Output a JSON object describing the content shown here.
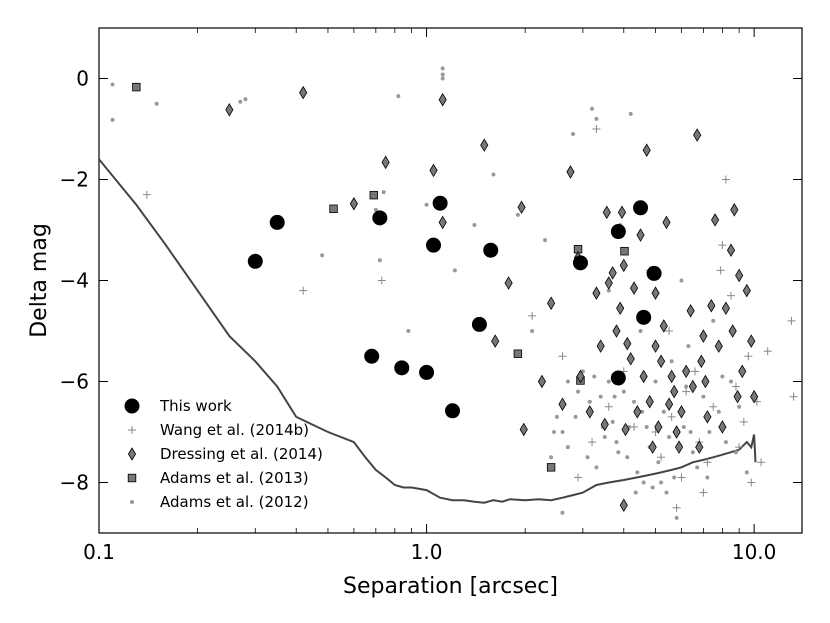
{
  "chart_data": {
    "type": "scatter",
    "title": "",
    "xlabel": "Separation [arcsec]",
    "ylabel": "Delta mag",
    "xscale": "log",
    "xlim": [
      0.1,
      14
    ],
    "ylim": [
      -9,
      1
    ],
    "xticks": [
      {
        "value": 0.1,
        "label": "0.1"
      },
      {
        "value": 1.0,
        "label": "1.0"
      },
      {
        "value": 10.0,
        "label": "10.0"
      }
    ],
    "yticks": [
      {
        "value": 0,
        "label": "0"
      },
      {
        "value": -2,
        "label": "−2"
      },
      {
        "value": -4,
        "label": "−4"
      },
      {
        "value": -6,
        "label": "−6"
      },
      {
        "value": -8,
        "label": "−8"
      }
    ],
    "grid": false,
    "legend_position": "bottom-left",
    "colors": {
      "black": "#000000",
      "gray_fill": "#777777",
      "light_gray": "#999999",
      "curve": "#444444"
    },
    "sensitivity_curve": {
      "x": [
        0.1,
        0.13,
        0.16,
        0.2,
        0.25,
        0.3,
        0.35,
        0.4,
        0.5,
        0.6,
        0.65,
        0.7,
        0.75,
        0.8,
        0.85,
        0.9,
        1.0,
        1.1,
        1.2,
        1.3,
        1.4,
        1.5,
        1.6,
        1.7,
        1.8,
        2.0,
        2.2,
        2.4,
        2.6,
        2.8,
        3.0,
        3.3,
        3.6,
        4.0,
        4.4,
        4.8,
        5.2,
        5.6,
        6.0,
        6.5,
        7.0,
        7.5,
        8.0,
        8.5,
        9.0,
        9.5,
        9.8,
        10.0,
        10.1
      ],
      "y": [
        -1.6,
        -2.5,
        -3.3,
        -4.2,
        -5.1,
        -5.6,
        -6.1,
        -6.7,
        -7.0,
        -7.2,
        -7.5,
        -7.75,
        -7.9,
        -8.05,
        -8.1,
        -8.1,
        -8.15,
        -8.3,
        -8.35,
        -8.35,
        -8.38,
        -8.4,
        -8.35,
        -8.38,
        -8.33,
        -8.35,
        -8.33,
        -8.35,
        -8.3,
        -8.25,
        -8.2,
        -8.05,
        -8.0,
        -7.95,
        -7.9,
        -7.85,
        -7.8,
        -7.75,
        -7.7,
        -7.6,
        -7.55,
        -7.5,
        -7.45,
        -7.4,
        -7.35,
        -7.2,
        -7.3,
        -7.05,
        -7.6
      ]
    },
    "series": [
      {
        "name": "This work",
        "marker": "circle-large",
        "points": [
          [
            0.3,
            -3.62
          ],
          [
            0.35,
            -2.85
          ],
          [
            0.68,
            -5.5
          ],
          [
            0.72,
            -2.76
          ],
          [
            0.84,
            -5.73
          ],
          [
            1.0,
            -5.82
          ],
          [
            1.05,
            -3.3
          ],
          [
            1.1,
            -2.47
          ],
          [
            1.2,
            -6.58
          ],
          [
            1.45,
            -4.87
          ],
          [
            1.57,
            -3.4
          ],
          [
            2.95,
            -3.65
          ],
          [
            3.85,
            -3.03
          ],
          [
            3.85,
            -5.93
          ],
          [
            4.5,
            -2.56
          ],
          [
            4.6,
            -4.73
          ],
          [
            4.95,
            -3.86
          ]
        ]
      },
      {
        "name": "Wang et al. (2014b)",
        "marker": "plus",
        "points": [
          [
            0.14,
            -2.3
          ],
          [
            0.42,
            -4.2
          ],
          [
            0.73,
            -4.0
          ],
          [
            2.1,
            -4.7
          ],
          [
            2.6,
            -5.5
          ],
          [
            3.3,
            -1.0
          ],
          [
            3.6,
            -6.5
          ],
          [
            4.0,
            -5.8
          ],
          [
            4.8,
            -3.8
          ],
          [
            5.0,
            -7.0
          ],
          [
            5.5,
            -5.0
          ],
          [
            5.8,
            -8.5
          ],
          [
            6.2,
            -6.2
          ],
          [
            6.8,
            -7.2
          ],
          [
            7.0,
            -8.2
          ],
          [
            7.5,
            -6.5
          ],
          [
            7.9,
            -3.8
          ],
          [
            8.2,
            -2.0
          ],
          [
            8.8,
            -6.1
          ],
          [
            9.0,
            -7.3
          ],
          [
            9.6,
            -5.5
          ],
          [
            10.2,
            -6.4
          ],
          [
            10.5,
            -7.6
          ],
          [
            11.0,
            -5.4
          ],
          [
            13.0,
            -4.8
          ],
          [
            13.2,
            -6.3
          ],
          [
            5.2,
            -7.5
          ],
          [
            4.3,
            -6.9
          ],
          [
            3.2,
            -7.2
          ],
          [
            6.6,
            -5.8
          ],
          [
            8.5,
            -4.3
          ],
          [
            9.8,
            -8.0
          ],
          [
            7.2,
            -7.6
          ],
          [
            5.6,
            -6.7
          ],
          [
            2.9,
            -7.9
          ],
          [
            8.0,
            -3.3
          ],
          [
            6.0,
            -7.9
          ],
          [
            9.3,
            -6.8
          ]
        ]
      },
      {
        "name": "Dressing et al. (2014)",
        "marker": "diamond",
        "points": [
          [
            0.25,
            -0.62
          ],
          [
            0.42,
            -0.28
          ],
          [
            0.6,
            -2.48
          ],
          [
            0.75,
            -1.66
          ],
          [
            1.05,
            -1.82
          ],
          [
            1.12,
            -0.42
          ],
          [
            1.12,
            -2.85
          ],
          [
            1.5,
            -1.32
          ],
          [
            1.62,
            -5.2
          ],
          [
            1.78,
            -4.05
          ],
          [
            1.95,
            -2.55
          ],
          [
            1.98,
            -6.95
          ],
          [
            2.25,
            -6.0
          ],
          [
            2.4,
            -4.45
          ],
          [
            2.6,
            -6.45
          ],
          [
            2.75,
            -1.85
          ],
          [
            2.9,
            -3.55
          ],
          [
            2.95,
            -5.9
          ],
          [
            3.15,
            -6.6
          ],
          [
            3.3,
            -4.25
          ],
          [
            3.4,
            -5.3
          ],
          [
            3.55,
            -2.65
          ],
          [
            3.6,
            -4.05
          ],
          [
            3.7,
            -3.85
          ],
          [
            3.8,
            -5.0
          ],
          [
            3.9,
            -4.55
          ],
          [
            3.95,
            -2.65
          ],
          [
            4.0,
            -3.7
          ],
          [
            4.05,
            -6.95
          ],
          [
            4.1,
            -5.25
          ],
          [
            4.2,
            -5.55
          ],
          [
            4.3,
            -4.15
          ],
          [
            4.5,
            -3.1
          ],
          [
            4.6,
            -5.9
          ],
          [
            4.7,
            -1.42
          ],
          [
            4.8,
            -6.4
          ],
          [
            4.9,
            -7.3
          ],
          [
            5.0,
            -4.25
          ],
          [
            5.1,
            -6.9
          ],
          [
            5.2,
            -5.6
          ],
          [
            5.3,
            -4.9
          ],
          [
            5.4,
            -2.85
          ],
          [
            5.5,
            -6.45
          ],
          [
            5.6,
            -5.9
          ],
          [
            5.7,
            -6.2
          ],
          [
            5.8,
            -7.0
          ],
          [
            5.9,
            -7.3
          ],
          [
            6.0,
            -6.6
          ],
          [
            6.2,
            -5.8
          ],
          [
            6.4,
            -4.6
          ],
          [
            6.5,
            -6.1
          ],
          [
            6.7,
            -1.12
          ],
          [
            6.9,
            -5.6
          ],
          [
            7.0,
            -5.1
          ],
          [
            7.2,
            -6.7
          ],
          [
            7.4,
            -4.5
          ],
          [
            7.6,
            -2.8
          ],
          [
            7.8,
            -5.3
          ],
          [
            8.0,
            -6.9
          ],
          [
            8.2,
            -4.55
          ],
          [
            8.5,
            -3.4
          ],
          [
            8.6,
            -5.0
          ],
          [
            8.7,
            -2.6
          ],
          [
            8.9,
            -6.3
          ],
          [
            9.0,
            -3.9
          ],
          [
            9.2,
            -5.8
          ],
          [
            9.5,
            -4.2
          ],
          [
            9.8,
            -5.2
          ],
          [
            10.0,
            -6.3
          ],
          [
            4.0,
            -8.45
          ],
          [
            6.8,
            -7.3
          ],
          [
            3.5,
            -6.85
          ],
          [
            5.0,
            -5.3
          ],
          [
            4.4,
            -6.6
          ],
          [
            7.1,
            -6.0
          ]
        ]
      },
      {
        "name": "Adams et al. (2013)",
        "marker": "square",
        "points": [
          [
            0.13,
            -0.17
          ],
          [
            0.52,
            -2.58
          ],
          [
            0.69,
            -2.31
          ],
          [
            1.9,
            -5.45
          ],
          [
            2.4,
            -7.7
          ],
          [
            2.9,
            -3.38
          ],
          [
            2.95,
            -5.98
          ],
          [
            4.02,
            -3.42
          ]
        ]
      },
      {
        "name": "Adams et al. (2012)",
        "marker": "dot",
        "points": [
          [
            0.11,
            -0.12
          ],
          [
            0.11,
            -0.82
          ],
          [
            0.15,
            -0.5
          ],
          [
            0.27,
            -0.46
          ],
          [
            0.28,
            -0.41
          ],
          [
            0.36,
            -2.78
          ],
          [
            0.48,
            -3.5
          ],
          [
            0.7,
            -2.6
          ],
          [
            0.72,
            -3.6
          ],
          [
            0.74,
            -2.25
          ],
          [
            0.82,
            -0.35
          ],
          [
            0.88,
            -5.0
          ],
          [
            1.0,
            -2.5
          ],
          [
            1.12,
            0.2
          ],
          [
            1.12,
            0.08
          ],
          [
            1.12,
            0.0
          ],
          [
            1.22,
            -3.8
          ],
          [
            1.4,
            -2.9
          ],
          [
            1.6,
            -1.9
          ],
          [
            1.9,
            -2.7
          ],
          [
            2.1,
            -5.0
          ],
          [
            2.3,
            -3.2
          ],
          [
            2.4,
            -7.5
          ],
          [
            2.5,
            -6.7
          ],
          [
            2.6,
            -7.0
          ],
          [
            2.6,
            -8.6
          ],
          [
            2.7,
            -7.3
          ],
          [
            2.8,
            -1.1
          ],
          [
            2.9,
            -6.2
          ],
          [
            3.0,
            -5.8
          ],
          [
            3.1,
            -7.5
          ],
          [
            3.2,
            -0.6
          ],
          [
            3.3,
            -0.8
          ],
          [
            3.4,
            -6.3
          ],
          [
            3.5,
            -7.1
          ],
          [
            3.6,
            -4.2
          ],
          [
            3.6,
            -6.0
          ],
          [
            3.7,
            -6.8
          ],
          [
            3.8,
            -7.2
          ],
          [
            3.9,
            -2.9
          ],
          [
            4.0,
            -6.2
          ],
          [
            4.1,
            -7.5
          ],
          [
            4.2,
            -0.7
          ],
          [
            4.3,
            -6.4
          ],
          [
            4.4,
            -7.8
          ],
          [
            4.5,
            -5.0
          ],
          [
            4.6,
            -8.0
          ],
          [
            4.7,
            -6.9
          ],
          [
            4.8,
            -7.3
          ],
          [
            4.9,
            -8.1
          ],
          [
            5.0,
            -6.0
          ],
          [
            5.1,
            -7.6
          ],
          [
            5.2,
            -8.0
          ],
          [
            5.3,
            -6.6
          ],
          [
            5.5,
            -7.1
          ],
          [
            5.6,
            -5.6
          ],
          [
            5.7,
            -7.9
          ],
          [
            5.8,
            -8.7
          ],
          [
            6.0,
            -4.0
          ],
          [
            6.1,
            -6.9
          ],
          [
            6.3,
            -5.3
          ],
          [
            6.5,
            -7.4
          ],
          [
            6.7,
            -7.7
          ],
          [
            7.0,
            -6.3
          ],
          [
            7.3,
            -7.0
          ],
          [
            7.5,
            -4.8
          ],
          [
            7.8,
            -6.6
          ],
          [
            8.0,
            -5.9
          ],
          [
            8.2,
            -7.2
          ],
          [
            8.5,
            -6.0
          ],
          [
            8.8,
            -7.4
          ],
          [
            9.0,
            -6.5
          ],
          [
            9.5,
            -7.8
          ],
          [
            2.45,
            -7.0
          ],
          [
            2.7,
            -6.0
          ],
          [
            3.15,
            -6.4
          ],
          [
            3.3,
            -7.7
          ],
          [
            3.45,
            -6.9
          ],
          [
            3.75,
            -6.3
          ],
          [
            4.15,
            -6.9
          ],
          [
            4.35,
            -8.2
          ],
          [
            4.55,
            -6.6
          ],
          [
            5.4,
            -8.2
          ],
          [
            6.2,
            -6.1
          ],
          [
            6.4,
            -7.0
          ],
          [
            7.2,
            -7.9
          ],
          [
            3.85,
            -7.4
          ],
          [
            3.25,
            -5.9
          ],
          [
            2.85,
            -6.7
          ]
        ]
      }
    ]
  }
}
